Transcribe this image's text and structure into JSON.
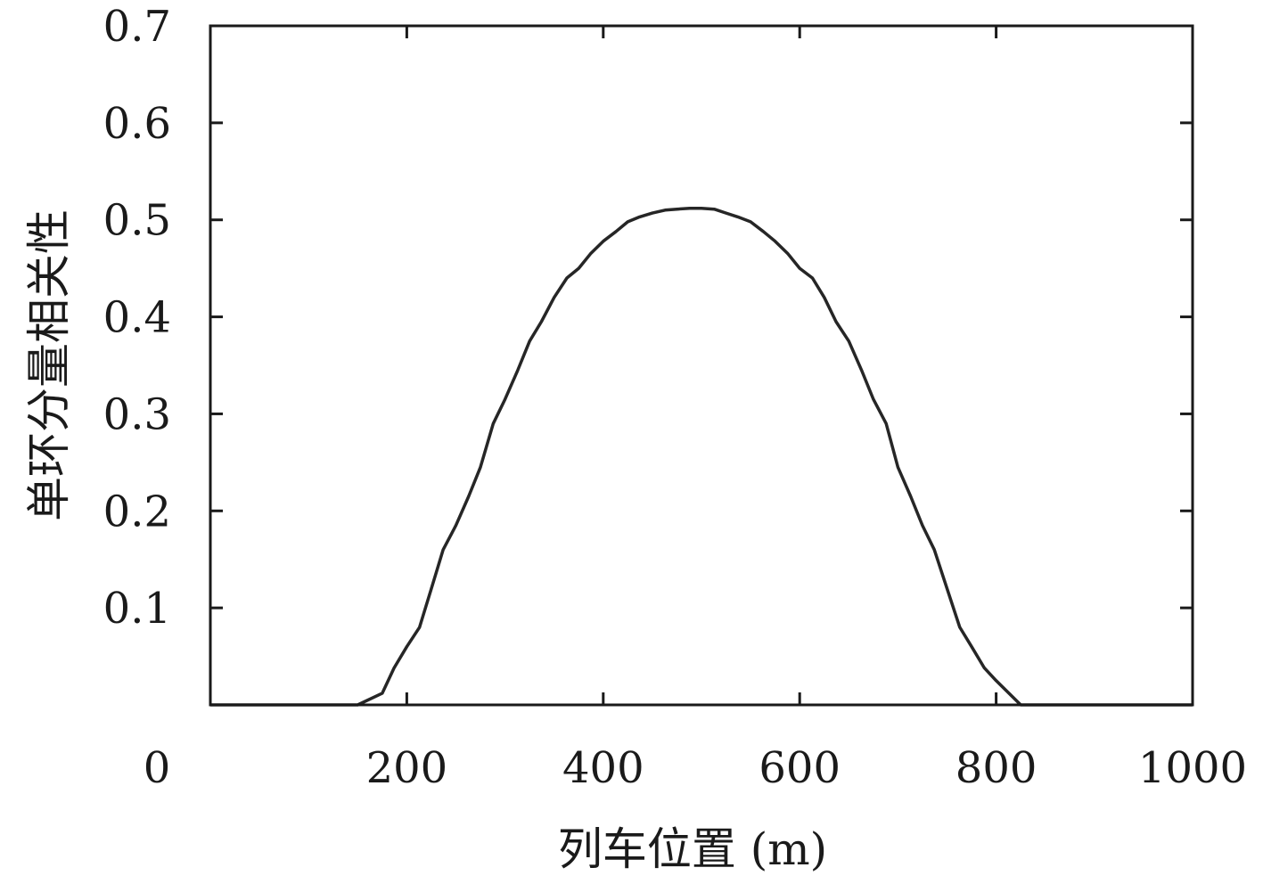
{
  "chart_data": {
    "type": "line",
    "title": "",
    "xlabel": "列车位置 (m)",
    "ylabel": "单环分量相关性",
    "xlim": [
      0,
      1000
    ],
    "ylim": [
      0,
      0.7
    ],
    "x_ticks": [
      0,
      200,
      400,
      600,
      800,
      1000
    ],
    "x_tick_labels": [
      "0",
      "200",
      "400",
      "600",
      "800",
      "1000"
    ],
    "y_ticks": [
      0.1,
      0.2,
      0.3,
      0.4,
      0.5,
      0.6,
      0.7
    ],
    "y_tick_labels": [
      "0.1",
      "0.2",
      "0.3",
      "0.4",
      "0.5",
      "0.6",
      "0.7"
    ],
    "grid": false,
    "legend": "none",
    "line_color": "#262626",
    "series": [
      {
        "x": [
          0,
          150,
          175,
          187,
          200,
          213,
          225,
          237,
          250,
          263,
          275,
          288,
          300,
          313,
          325,
          337,
          350,
          363,
          375,
          387,
          400,
          413,
          425,
          437,
          450,
          463,
          475,
          488,
          500,
          513,
          525,
          537,
          550,
          563,
          575,
          588,
          600,
          613,
          625,
          637,
          650,
          663,
          675,
          688,
          700,
          713,
          725,
          737,
          750,
          763,
          775,
          788,
          800,
          813,
          825,
          850,
          1000
        ],
        "y": [
          0.0,
          0.0,
          0.012,
          0.038,
          0.06,
          0.08,
          0.12,
          0.16,
          0.185,
          0.215,
          0.245,
          0.29,
          0.315,
          0.345,
          0.375,
          0.395,
          0.42,
          0.44,
          0.45,
          0.465,
          0.478,
          0.488,
          0.498,
          0.503,
          0.507,
          0.51,
          0.511,
          0.512,
          0.512,
          0.511,
          0.507,
          0.503,
          0.498,
          0.488,
          0.478,
          0.465,
          0.45,
          0.44,
          0.42,
          0.395,
          0.375,
          0.345,
          0.315,
          0.29,
          0.245,
          0.215,
          0.185,
          0.16,
          0.12,
          0.08,
          0.06,
          0.038,
          0.025,
          0.012,
          0.0,
          0.0,
          0.0
        ]
      }
    ]
  }
}
